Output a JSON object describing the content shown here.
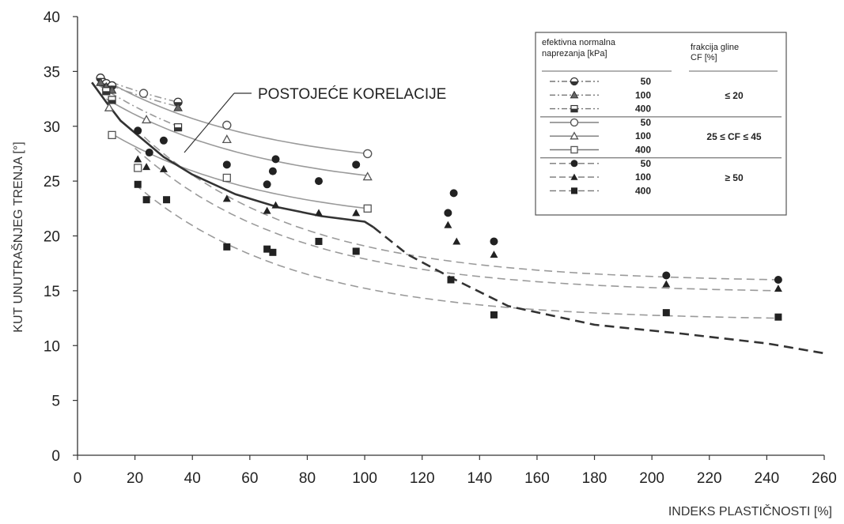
{
  "chart_data": {
    "type": "scatter",
    "title": "",
    "xlabel": "INDEKS PLASTIČNOSTI [%]",
    "ylabel": "KUT UNUTRAŠNJEG TRENJA [°]",
    "xlim": [
      0,
      260
    ],
    "ylim": [
      0,
      40
    ],
    "xticks": [
      "0",
      "20",
      "40",
      "60",
      "80",
      "100",
      "120",
      "140",
      "160",
      "180",
      "200",
      "220",
      "240",
      "260"
    ],
    "yticks": [
      "0",
      "5",
      "10",
      "15",
      "20",
      "25",
      "30",
      "35",
      "40"
    ],
    "grid": false,
    "annotation": "POSTOJEĆE KORELACIJE",
    "legend": {
      "placement": "top-right",
      "header_left": [
        "efektivna normalna",
        "naprezanja [kPa]"
      ],
      "header_right": [
        "frakcija gline",
        "CF [%]"
      ],
      "groups": [
        {
          "cf": "≤ 20",
          "stresses": [
            "50",
            "100",
            "400"
          ]
        },
        {
          "cf": "25 ≤ CF ≤ 45",
          "stresses": [
            "50",
            "100",
            "400"
          ]
        },
        {
          "cf": "≥ 50",
          "stresses": [
            "50",
            "100",
            "400"
          ]
        }
      ]
    },
    "series": [
      {
        "name": "50 kPa, CF ≤ 20",
        "marker": "half-circle",
        "line": "dashdot",
        "x": [
          8,
          9,
          10,
          12,
          35
        ],
        "y": [
          34.4,
          34.0,
          33.9,
          33.7,
          32.2
        ],
        "fit_x": [
          7,
          35
        ],
        "fit_y": [
          34.5,
          32.2
        ]
      },
      {
        "name": "100 kPa, CF ≤ 20",
        "marker": "triangle",
        "line": "dashdot",
        "x": [
          8,
          10,
          12,
          35
        ],
        "y": [
          34.0,
          33.6,
          33.3,
          31.7
        ],
        "fit_x": [
          7,
          35
        ],
        "fit_y": [
          34.2,
          31.8
        ]
      },
      {
        "name": "400 kPa, CF ≤ 20",
        "marker": "half-square",
        "line": "dashdot",
        "x": [
          10,
          12,
          35
        ],
        "y": [
          33.2,
          32.4,
          29.9
        ],
        "fit_x": [
          7,
          35
        ],
        "fit_y": [
          33.8,
          30.0
        ]
      },
      {
        "name": "50 kPa, 25 ≤ CF ≤ 45",
        "marker": "open-circle",
        "line": "solid",
        "x": [
          23,
          52,
          101
        ],
        "y": [
          33.0,
          30.1,
          27.5
        ],
        "fit_x": [
          11,
          101
        ],
        "fit_y": [
          34.0,
          27.5
        ]
      },
      {
        "name": "100 kPa, 25 ≤ CF ≤ 45",
        "marker": "open-triangle",
        "line": "solid",
        "x": [
          11,
          24,
          52,
          101
        ],
        "y": [
          31.7,
          30.6,
          28.8,
          25.4
        ],
        "fit_x": [
          10,
          101
        ],
        "fit_y": [
          32.5,
          25.5
        ]
      },
      {
        "name": "400 kPa, 25 ≤ CF ≤ 45",
        "marker": "open-square",
        "line": "solid",
        "x": [
          12,
          21,
          52,
          101
        ],
        "y": [
          29.2,
          26.2,
          25.3,
          22.5
        ],
        "fit_x": [
          12,
          101
        ],
        "fit_y": [
          29.3,
          22.5
        ]
      },
      {
        "name": "50 kPa, CF ≥ 50",
        "marker": "filled-circle",
        "line": "dashed",
        "x": [
          21,
          25,
          30,
          52,
          66,
          68,
          69,
          84,
          97,
          129,
          131,
          145,
          205,
          244
        ],
        "y": [
          29.6,
          27.6,
          28.7,
          26.5,
          24.7,
          25.9,
          27.0,
          25.0,
          26.5,
          22.1,
          23.9,
          19.5,
          16.4,
          16.0
        ],
        "fit_x": [
          20,
          244
        ],
        "fit_y": [
          29.8,
          16.0
        ]
      },
      {
        "name": "100 kPa, CF ≥ 50",
        "marker": "filled-triangle",
        "line": "dashed",
        "x": [
          21,
          24,
          30,
          52,
          66,
          69,
          84,
          97,
          129,
          132,
          145,
          205,
          244
        ],
        "y": [
          27.0,
          26.3,
          26.1,
          23.4,
          22.3,
          22.8,
          22.1,
          22.1,
          21.0,
          19.5,
          18.3,
          15.6,
          15.2
        ],
        "fit_x": [
          20,
          244
        ],
        "fit_y": [
          28.0,
          15.0
        ]
      },
      {
        "name": "400 kPa, CF ≥ 50",
        "marker": "filled-square",
        "line": "dashed",
        "x": [
          21,
          24,
          31,
          52,
          66,
          68,
          84,
          97,
          130,
          145,
          205,
          244
        ],
        "y": [
          24.7,
          23.3,
          23.3,
          19.0,
          18.8,
          18.5,
          19.5,
          18.6,
          16.0,
          12.8,
          13.0,
          12.6
        ],
        "fit_x": [
          20,
          244
        ],
        "fit_y": [
          24.7,
          12.5
        ]
      }
    ],
    "correlation_curve": {
      "solid": {
        "x": [
          5,
          10,
          15,
          20,
          30,
          40,
          55,
          70,
          85,
          100,
          103
        ],
        "y": [
          34.0,
          32.2,
          30.5,
          29.4,
          27.2,
          25.6,
          23.8,
          22.6,
          21.8,
          21.3,
          20.8
        ]
      },
      "dashed": {
        "x": [
          103,
          115,
          130,
          150,
          180,
          210,
          240,
          260
        ],
        "y": [
          20.8,
          18.3,
          16.2,
          13.6,
          11.9,
          11.1,
          10.2,
          9.3
        ]
      }
    }
  }
}
